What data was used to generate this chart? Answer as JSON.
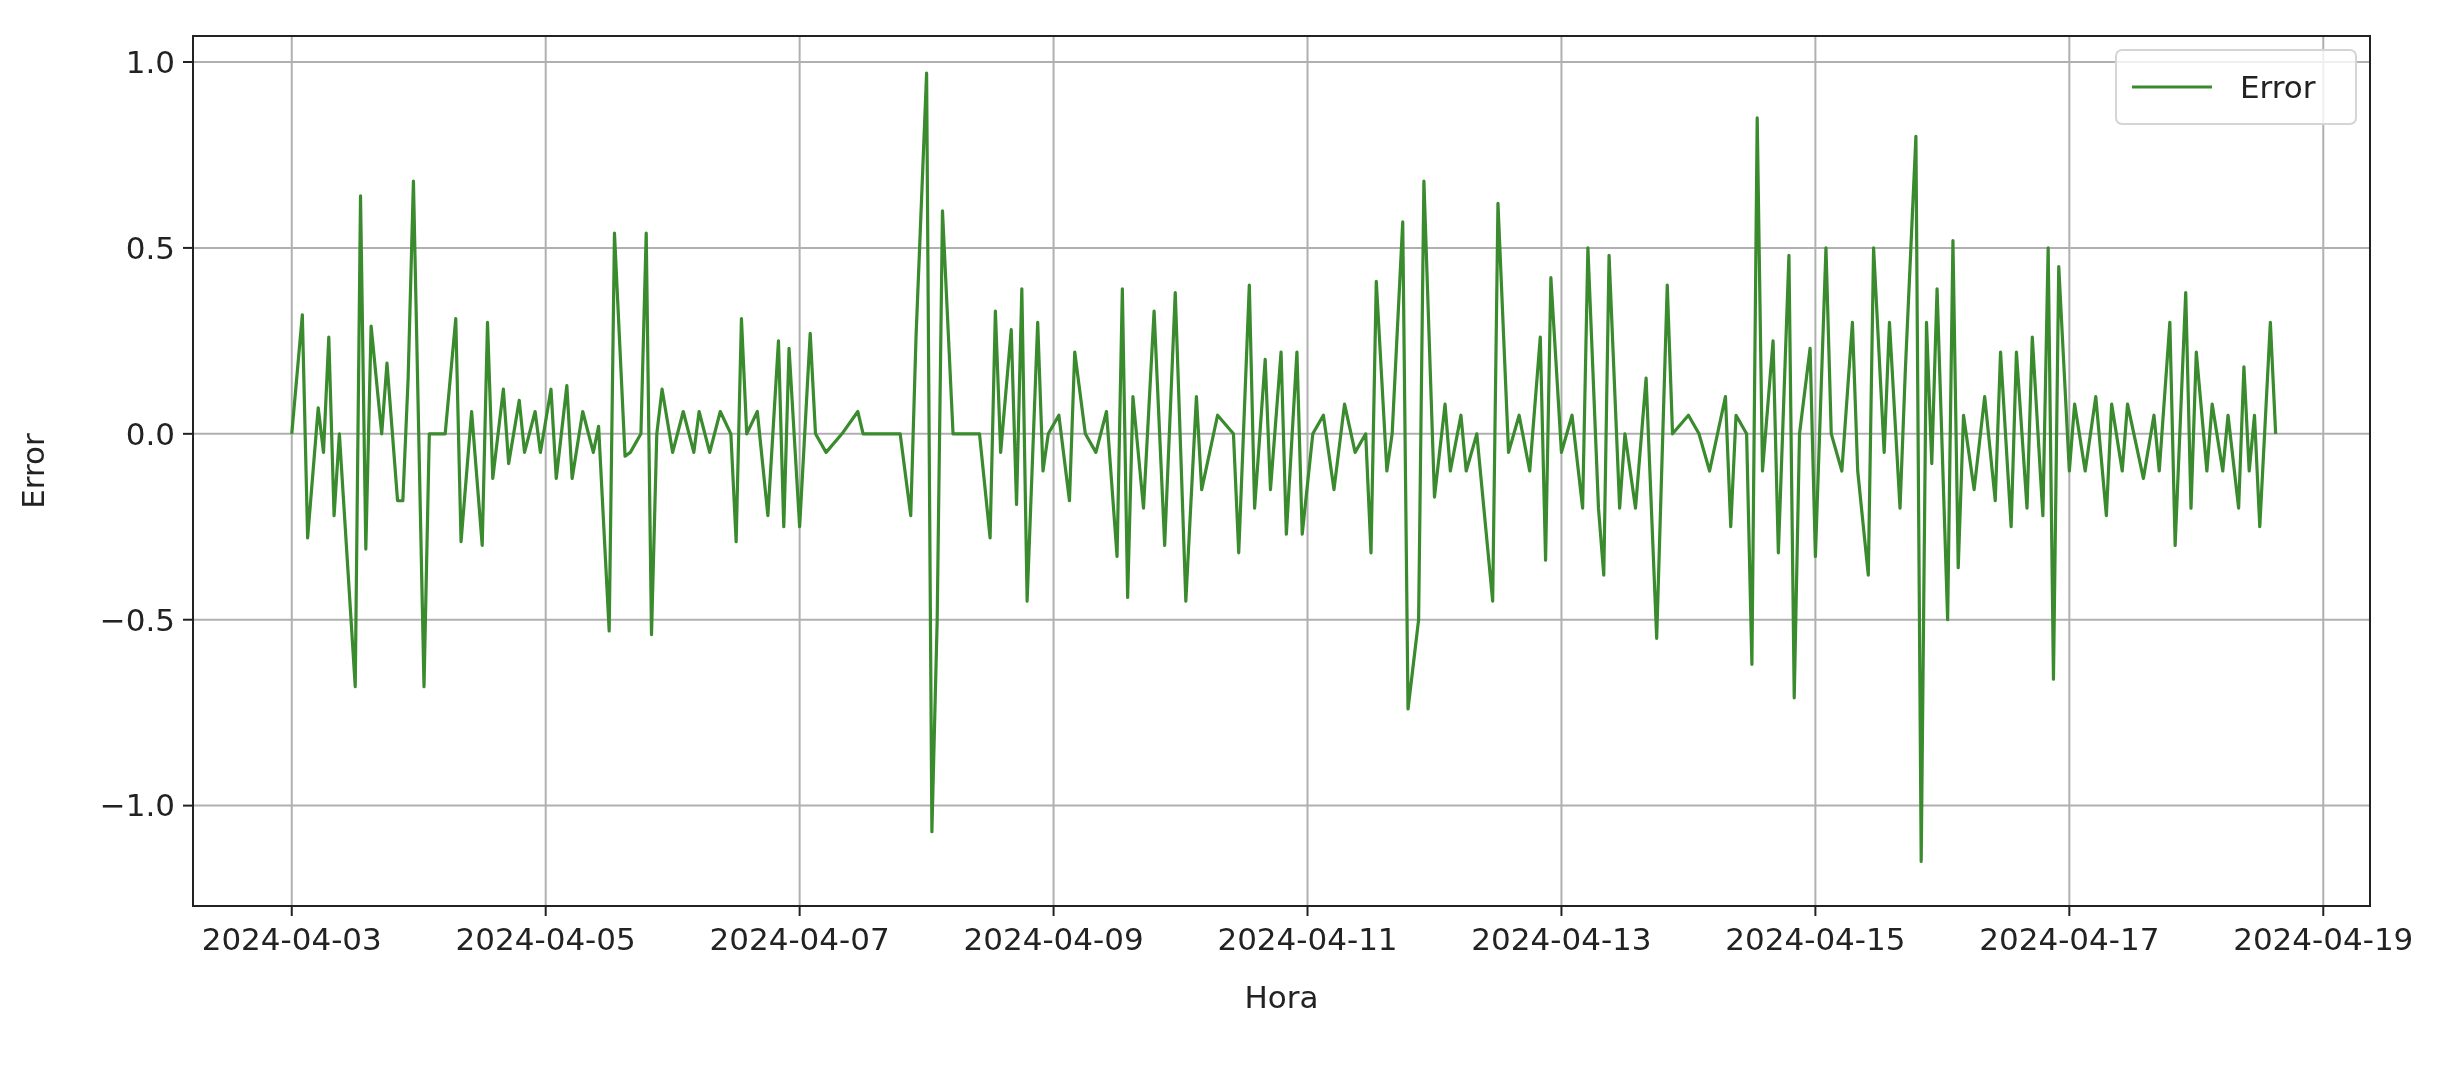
{
  "chart_data": {
    "type": "line",
    "xlabel": "Hora",
    "ylabel": "Error",
    "xlim": [
      "2024-04-02T05:20",
      "2024-04-19T08:50"
    ],
    "xticks": [
      "2024-04-03",
      "2024-04-05",
      "2024-04-07",
      "2024-04-09",
      "2024-04-11",
      "2024-04-13",
      "2024-04-15",
      "2024-04-17",
      "2024-04-19"
    ],
    "ylim": [
      -1.27,
      1.07
    ],
    "yticks": [
      {
        "value": -1,
        "label": "−1.0"
      },
      {
        "value": -0.5,
        "label": "−0.5"
      },
      {
        "value": 0,
        "label": "0.0"
      },
      {
        "value": 0.5,
        "label": "0.5"
      },
      {
        "value": 1,
        "label": "1.0"
      }
    ],
    "grid": true,
    "legend": "top right",
    "x": [
      "2024-04-03T00:00",
      "2024-04-03T02:00",
      "2024-04-03T03:00",
      "2024-04-03T05:00",
      "2024-04-03T06:00",
      "2024-04-03T07:00",
      "2024-04-03T08:00",
      "2024-04-03T09:00",
      "2024-04-03T12:00",
      "2024-04-03T13:00",
      "2024-04-03T14:00",
      "2024-04-03T15:00",
      "2024-04-03T17:00",
      "2024-04-03T18:00",
      "2024-04-03T20:00",
      "2024-04-03T21:00",
      "2024-04-03T22:00",
      "2024-04-03T23:00",
      "2024-04-04T01:00",
      "2024-04-04T02:00",
      "2024-04-04T05:00",
      "2024-04-04T07:00",
      "2024-04-04T08:00",
      "2024-04-04T10:00",
      "2024-04-04T12:00",
      "2024-04-04T13:00",
      "2024-04-04T14:00",
      "2024-04-04T16:00",
      "2024-04-04T17:00",
      "2024-04-04T19:00",
      "2024-04-04T20:00",
      "2024-04-04T22:00",
      "2024-04-04T23:00",
      "2024-04-05T01:00",
      "2024-04-05T02:00",
      "2024-04-05T04:00",
      "2024-04-05T05:00",
      "2024-04-05T07:00",
      "2024-04-05T09:00",
      "2024-04-05T10:00",
      "2024-04-05T12:00",
      "2024-04-05T13:00",
      "2024-04-05T15:00",
      "2024-04-05T16:00",
      "2024-04-05T18:00",
      "2024-04-05T19:00",
      "2024-04-05T20:00",
      "2024-04-05T21:00",
      "2024-04-05T22:00",
      "2024-04-06T00:00",
      "2024-04-06T02:00",
      "2024-04-06T04:00",
      "2024-04-06T05:00",
      "2024-04-06T07:00",
      "2024-04-06T09:00",
      "2024-04-06T11:00",
      "2024-04-06T12:00",
      "2024-04-06T13:00",
      "2024-04-06T14:00",
      "2024-04-06T16:00",
      "2024-04-06T18:00",
      "2024-04-06T20:00",
      "2024-04-06T21:00",
      "2024-04-06T22:00",
      "2024-04-07T00:00",
      "2024-04-07T02:00",
      "2024-04-07T03:00",
      "2024-04-07T05:00",
      "2024-04-07T08:00",
      "2024-04-07T11:00",
      "2024-04-07T12:00",
      "2024-04-07T19:00",
      "2024-04-07T21:00",
      "2024-04-07T22:00",
      "2024-04-08T00:00",
      "2024-04-08T01:00",
      "2024-04-08T02:00",
      "2024-04-08T03:00",
      "2024-04-08T05:00",
      "2024-04-08T10:00",
      "2024-04-08T12:00",
      "2024-04-08T13:00",
      "2024-04-08T14:00",
      "2024-04-08T16:00",
      "2024-04-08T17:00",
      "2024-04-08T18:00",
      "2024-04-08T19:00",
      "2024-04-08T21:00",
      "2024-04-08T22:00",
      "2024-04-08T23:00",
      "2024-04-09T01:00",
      "2024-04-09T03:00",
      "2024-04-09T04:00",
      "2024-04-09T06:00",
      "2024-04-09T08:00",
      "2024-04-09T10:00",
      "2024-04-09T12:00",
      "2024-04-09T13:00",
      "2024-04-09T14:00",
      "2024-04-09T15:00",
      "2024-04-09T17:00",
      "2024-04-09T19:00",
      "2024-04-09T21:00",
      "2024-04-09T23:00",
      "2024-04-10T01:00",
      "2024-04-10T03:00",
      "2024-04-10T04:00",
      "2024-04-10T07:00",
      "2024-04-10T10:00",
      "2024-04-10T11:00",
      "2024-04-10T13:00",
      "2024-04-10T14:00",
      "2024-04-10T16:00",
      "2024-04-10T17:00",
      "2024-04-10T19:00",
      "2024-04-10T20:00",
      "2024-04-10T22:00",
      "2024-04-10T23:00",
      "2024-04-11T01:00",
      "2024-04-11T03:00",
      "2024-04-11T05:00",
      "2024-04-11T07:00",
      "2024-04-11T09:00",
      "2024-04-11T11:00",
      "2024-04-11T12:00",
      "2024-04-11T13:00",
      "2024-04-11T15:00",
      "2024-04-11T16:00",
      "2024-04-11T18:00",
      "2024-04-11T19:00",
      "2024-04-11T21:00",
      "2024-04-11T22:00",
      "2024-04-12T00:00",
      "2024-04-12T02:00",
      "2024-04-12T03:00",
      "2024-04-12T05:00",
      "2024-04-12T06:00",
      "2024-04-12T08:00",
      "2024-04-12T11:00",
      "2024-04-12T12:00",
      "2024-04-12T14:00",
      "2024-04-12T16:00",
      "2024-04-12T18:00",
      "2024-04-12T20:00",
      "2024-04-12T21:00",
      "2024-04-12T22:00",
      "2024-04-13T00:00",
      "2024-04-13T02:00",
      "2024-04-13T04:00",
      "2024-04-13T05:00",
      "2024-04-13T07:00",
      "2024-04-13T08:00",
      "2024-04-13T09:00",
      "2024-04-13T11:00",
      "2024-04-13T12:00",
      "2024-04-13T14:00",
      "2024-04-13T16:00",
      "2024-04-13T18:00",
      "2024-04-13T20:00",
      "2024-04-13T21:00",
      "2024-04-14T00:00",
      "2024-04-14T02:00",
      "2024-04-14T04:00",
      "2024-04-14T07:00",
      "2024-04-14T08:00",
      "2024-04-14T09:00",
      "2024-04-14T11:00",
      "2024-04-14T12:00",
      "2024-04-14T13:00",
      "2024-04-14T14:00",
      "2024-04-14T16:00",
      "2024-04-14T17:00",
      "2024-04-14T19:00",
      "2024-04-14T20:00",
      "2024-04-14T21:00",
      "2024-04-14T23:00",
      "2024-04-15T00:00",
      "2024-04-15T02:00",
      "2024-04-15T03:00",
      "2024-04-15T05:00",
      "2024-04-15T07:00",
      "2024-04-15T08:00",
      "2024-04-15T10:00",
      "2024-04-15T11:00",
      "2024-04-15T13:00",
      "2024-04-15T14:00",
      "2024-04-15T16:00",
      "2024-04-15T17:00",
      "2024-04-15T19:00",
      "2024-04-15T20:00",
      "2024-04-15T21:00",
      "2024-04-15T22:00",
      "2024-04-15T23:00",
      "2024-04-16T01:00",
      "2024-04-16T02:00",
      "2024-04-16T03:00",
      "2024-04-16T04:00",
      "2024-04-16T06:00",
      "2024-04-16T08:00",
      "2024-04-16T10:00",
      "2024-04-16T11:00",
      "2024-04-16T13:00",
      "2024-04-16T14:00",
      "2024-04-16T16:00",
      "2024-04-16T17:00",
      "2024-04-16T19:00",
      "2024-04-16T20:00",
      "2024-04-16T21:00",
      "2024-04-16T22:00",
      "2024-04-17T00:00",
      "2024-04-17T01:00",
      "2024-04-17T03:00",
      "2024-04-17T05:00",
      "2024-04-17T07:00",
      "2024-04-17T08:00",
      "2024-04-17T10:00",
      "2024-04-17T11:00",
      "2024-04-17T14:00",
      "2024-04-17T16:00",
      "2024-04-17T17:00",
      "2024-04-17T19:00",
      "2024-04-17T20:00",
      "2024-04-17T22:00",
      "2024-04-17T23:00",
      "2024-04-18T00:00",
      "2024-04-18T02:00",
      "2024-04-18T03:00",
      "2024-04-18T05:00",
      "2024-04-18T06:00",
      "2024-04-18T08:00",
      "2024-04-18T09:00",
      "2024-04-18T10:00",
      "2024-04-18T11:00",
      "2024-04-18T12:00",
      "2024-04-18T14:00",
      "2024-04-18T15:00"
    ],
    "series": [
      {
        "name": "Error",
        "color": "#3a8a2e",
        "values": [
          0.0,
          0.32,
          -0.28,
          0.07,
          -0.05,
          0.26,
          -0.22,
          0.0,
          -0.68,
          0.64,
          -0.31,
          0.29,
          0.0,
          0.19,
          -0.18,
          -0.18,
          0.15,
          0.68,
          -0.68,
          0.0,
          0.0,
          0.31,
          -0.29,
          0.06,
          -0.3,
          0.3,
          -0.12,
          0.12,
          -0.08,
          0.09,
          -0.05,
          0.06,
          -0.05,
          0.12,
          -0.12,
          0.13,
          -0.12,
          0.06,
          -0.05,
          0.02,
          -0.53,
          0.54,
          -0.06,
          -0.05,
          0.0,
          0.54,
          -0.54,
          0.0,
          0.12,
          -0.05,
          0.06,
          -0.05,
          0.06,
          -0.05,
          0.06,
          0.0,
          -0.29,
          0.31,
          0.0,
          0.06,
          -0.22,
          0.25,
          -0.25,
          0.23,
          -0.25,
          0.27,
          0.0,
          -0.05,
          0.0,
          0.06,
          0.0,
          0.0,
          -0.22,
          0.26,
          0.97,
          -1.07,
          -0.5,
          0.6,
          0.0,
          0.0,
          -0.28,
          0.33,
          -0.05,
          0.28,
          -0.19,
          0.39,
          -0.45,
          0.3,
          -0.1,
          0.0,
          0.05,
          -0.18,
          0.22,
          0.0,
          -0.05,
          0.06,
          -0.33,
          0.39,
          -0.44,
          0.1,
          -0.2,
          0.33,
          -0.3,
          0.38,
          -0.45,
          0.1,
          -0.15,
          0.05,
          0.0,
          -0.32,
          0.4,
          -0.2,
          0.2,
          -0.15,
          0.22,
          -0.27,
          0.22,
          -0.27,
          0.0,
          0.05,
          -0.15,
          0.08,
          -0.05,
          0.0,
          -0.32,
          0.41,
          -0.1,
          0.0,
          0.57,
          -0.74,
          -0.5,
          0.68,
          -0.17,
          0.08,
          -0.1,
          0.05,
          -0.1,
          0.0,
          -0.45,
          0.62,
          -0.05,
          0.05,
          -0.1,
          0.26,
          -0.34,
          0.42,
          -0.05,
          0.05,
          -0.2,
          0.5,
          -0.2,
          -0.38,
          0.48,
          -0.2,
          0.0,
          -0.2,
          0.15,
          -0.55,
          0.4,
          0.0,
          0.05,
          0.0,
          -0.1,
          0.1,
          -0.25,
          0.05,
          0.0,
          -0.62,
          0.85,
          -0.1,
          0.25,
          -0.32,
          0.48,
          -0.71,
          0.0,
          0.23,
          -0.33,
          0.5,
          0.0,
          -0.1,
          0.3,
          -0.1,
          -0.38,
          0.5,
          -0.05,
          0.3,
          -0.2,
          0.17,
          0.8,
          -1.15,
          0.3,
          -0.08,
          0.39,
          -0.5,
          0.52,
          -0.36,
          0.05,
          -0.15,
          0.1,
          -0.18,
          0.22,
          -0.25,
          0.22,
          -0.2,
          0.26,
          -0.22,
          0.5,
          -0.66,
          0.45,
          -0.1,
          0.08,
          -0.1,
          0.1,
          -0.22,
          0.08,
          -0.1,
          0.08,
          -0.12,
          0.05,
          -0.1,
          0.3,
          -0.3,
          0.38,
          -0.2,
          0.22,
          -0.1,
          0.08,
          -0.1,
          0.05,
          -0.2,
          0.18,
          -0.1,
          0.05,
          -0.25,
          0.3,
          0.0
        ]
      }
    ]
  }
}
